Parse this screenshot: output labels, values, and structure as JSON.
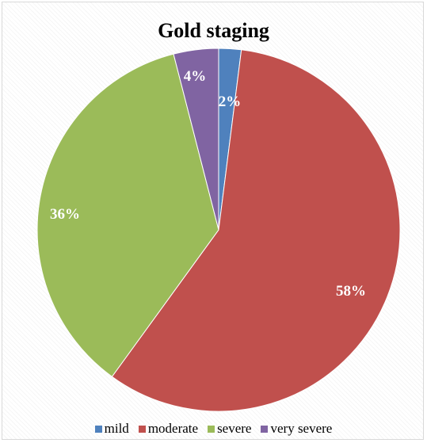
{
  "chart_data": {
    "type": "pie",
    "title": "Gold staging",
    "categories": [
      "mild",
      "moderate",
      "severe",
      "very severe"
    ],
    "values": [
      2,
      58,
      36,
      4
    ],
    "labels": [
      "2%",
      "58%",
      "36%",
      "4%"
    ],
    "colors": [
      "#4f81bd",
      "#c0504d",
      "#9bbb59",
      "#8064a2"
    ],
    "legend_position": "bottom"
  }
}
